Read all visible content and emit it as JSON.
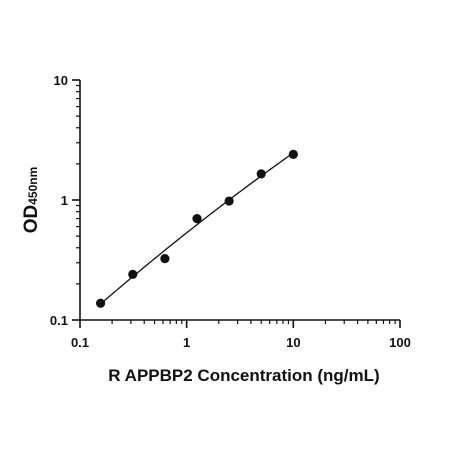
{
  "chart_data": {
    "type": "scatter",
    "title": "",
    "xlabel": "R APPBP2 Concentration (ng/mL)",
    "ylabel_main": "OD",
    "ylabel_sub": "450nm",
    "x_scale": "log",
    "y_scale": "log",
    "xlim": [
      0.1,
      100
    ],
    "ylim": [
      0.1,
      10
    ],
    "x_ticks": [
      {
        "value": 0.1,
        "label": "0.1"
      },
      {
        "value": 1,
        "label": "1"
      },
      {
        "value": 10,
        "label": "10"
      },
      {
        "value": 100,
        "label": "100"
      }
    ],
    "y_ticks": [
      {
        "value": 0.1,
        "label": "0.1"
      },
      {
        "value": 1,
        "label": "1"
      },
      {
        "value": 10,
        "label": "10"
      }
    ],
    "grid": false,
    "legend": "none",
    "marker_color": "#111111",
    "line_color": "#111111",
    "points": [
      {
        "x": 0.156,
        "y": 0.138
      },
      {
        "x": 0.3125,
        "y": 0.24
      },
      {
        "x": 0.625,
        "y": 0.325
      },
      {
        "x": 1.25,
        "y": 0.7
      },
      {
        "x": 2.5,
        "y": 0.98
      },
      {
        "x": 5,
        "y": 1.65
      },
      {
        "x": 10,
        "y": 2.4
      }
    ],
    "fit_curve": true
  }
}
